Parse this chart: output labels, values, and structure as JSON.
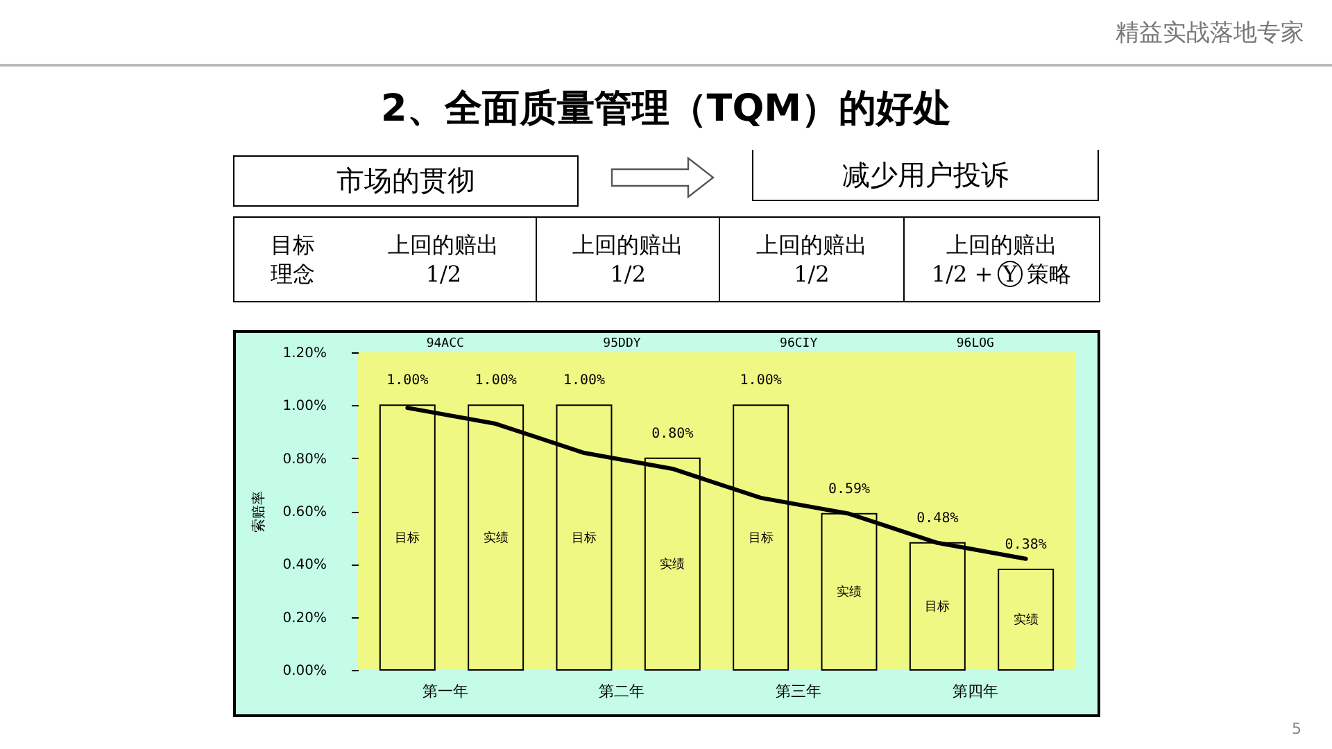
{
  "chart_data": {
    "type": "bar",
    "title": "2、全面质量管理（TQM）的好处",
    "ylabel": "索赔率",
    "categories": [
      "目标",
      "实绩",
      "目标",
      "实绩",
      "目标",
      "实绩",
      "目标",
      "实绩"
    ],
    "series": [
      {
        "type": "bar",
        "color": "#f0f884",
        "values": [
          1.0,
          1.0,
          1.0,
          0.8,
          1.0,
          0.59,
          0.48,
          0.38
        ],
        "value_labels": [
          "1.00%",
          "1.00%",
          "1.00%",
          "0.80%",
          "1.00%",
          "0.59%",
          "0.48%",
          "0.38%"
        ]
      },
      {
        "type": "line",
        "color": "#000000",
        "values": [
          0.99,
          0.93,
          0.82,
          0.76,
          0.65,
          0.59,
          0.48,
          0.42
        ]
      }
    ],
    "ylim": [
      0,
      1.2
    ],
    "yticks": [
      {
        "value": 0,
        "label": "0.00%"
      },
      {
        "value": 0.2,
        "label": "0.20%"
      },
      {
        "value": 0.4,
        "label": "0.40%"
      },
      {
        "value": 0.6,
        "label": "0.60%"
      },
      {
        "value": 0.8,
        "label": "0.80%"
      },
      {
        "value": 1.0,
        "label": "1.00%"
      },
      {
        "value": 1.2,
        "label": "1.20%"
      }
    ],
    "annotations": [
      "精益实战落地专家",
      "市场的贯彻",
      "减少用户投诉",
      "目标",
      "理念",
      "上回的赔出",
      "1/2",
      "上回的赔出",
      "1/2",
      "上回的赔出",
      "1/2",
      "上回的赔出",
      "1/2 +",
      "Y",
      "策略",
      "第一年",
      "第二年",
      "第三年",
      "第四年",
      "94ACC",
      "95DDY",
      "96CIY",
      "96LOG",
      "5"
    ]
  }
}
